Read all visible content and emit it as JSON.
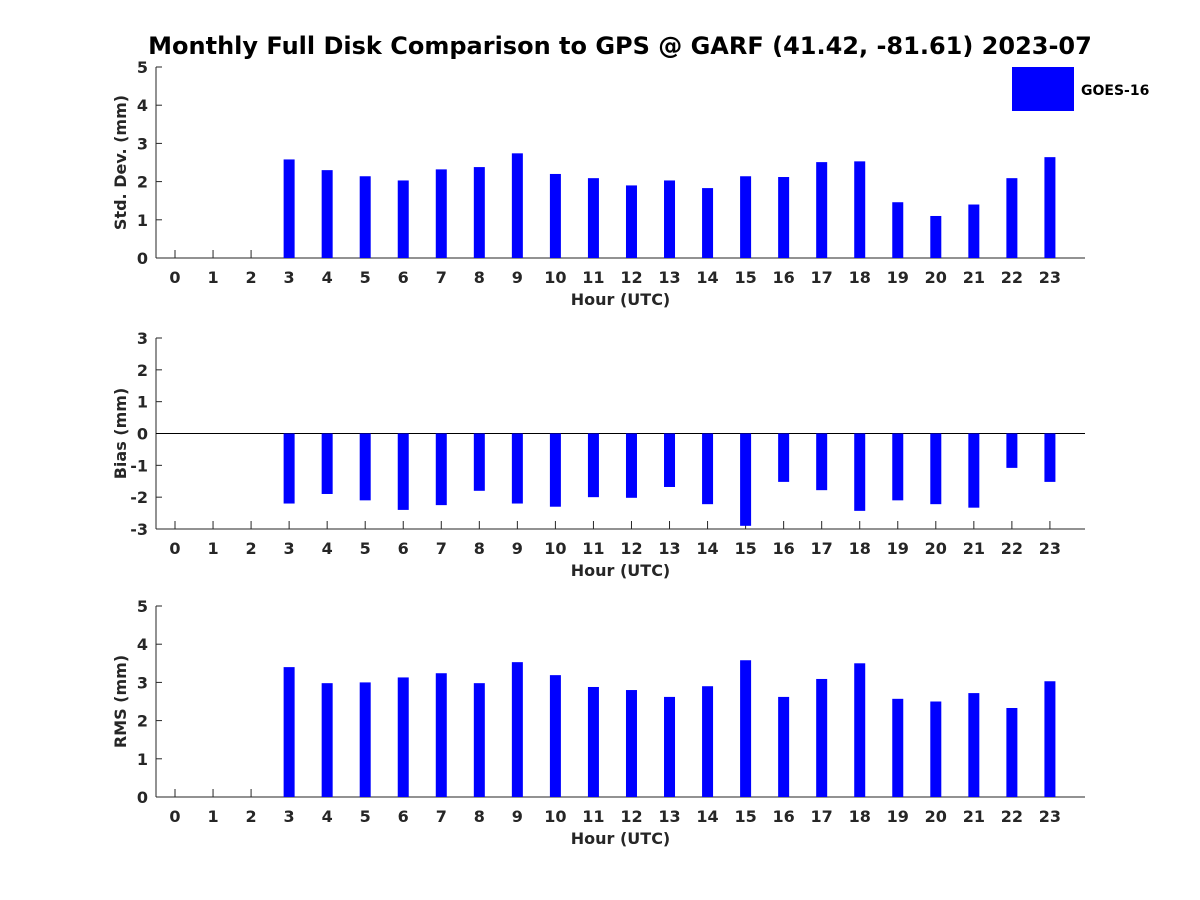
{
  "title": "Monthly Full Disk Comparison to GPS @ GARF (41.42, -81.61) 2023-07",
  "legend": {
    "label": "GOES-16",
    "placement": "top-right"
  },
  "colors": {
    "bar": "#0000ff",
    "axis": "#262626",
    "text": "#262626"
  },
  "chart_data": [
    {
      "type": "bar",
      "ylabel": "Std. Dev. (mm)",
      "xlabel": "Hour (UTC)",
      "ylim": [
        0,
        5
      ],
      "yticks": [
        0,
        1,
        2,
        3,
        4,
        5
      ],
      "categories": [
        0,
        1,
        2,
        3,
        4,
        5,
        6,
        7,
        8,
        9,
        10,
        11,
        12,
        13,
        14,
        15,
        16,
        17,
        18,
        19,
        20,
        21,
        22,
        23
      ],
      "series": [
        {
          "name": "GOES-16",
          "values": [
            null,
            null,
            null,
            2.58,
            2.3,
            2.14,
            2.03,
            2.32,
            2.38,
            2.74,
            2.2,
            2.09,
            1.9,
            2.03,
            1.83,
            2.14,
            2.12,
            2.51,
            2.53,
            1.46,
            1.1,
            1.4,
            2.09,
            2.64
          ]
        }
      ]
    },
    {
      "type": "bar",
      "ylabel": "Bias (mm)",
      "xlabel": "Hour (UTC)",
      "ylim": [
        -3,
        3
      ],
      "yticks": [
        -3,
        -2,
        -1,
        0,
        1,
        2,
        3
      ],
      "categories": [
        0,
        1,
        2,
        3,
        4,
        5,
        6,
        7,
        8,
        9,
        10,
        11,
        12,
        13,
        14,
        15,
        16,
        17,
        18,
        19,
        20,
        21,
        22,
        23
      ],
      "series": [
        {
          "name": "GOES-16",
          "values": [
            null,
            null,
            null,
            -2.2,
            -1.9,
            -2.1,
            -2.4,
            -2.25,
            -1.8,
            -2.2,
            -2.3,
            -2.0,
            -2.02,
            -1.68,
            -2.22,
            -2.9,
            -1.52,
            -1.78,
            -2.43,
            -2.1,
            -2.22,
            -2.33,
            -1.08,
            -1.52
          ]
        }
      ]
    },
    {
      "type": "bar",
      "ylabel": "RMS (mm)",
      "xlabel": "Hour (UTC)",
      "ylim": [
        0,
        5
      ],
      "yticks": [
        0,
        1,
        2,
        3,
        4,
        5
      ],
      "categories": [
        0,
        1,
        2,
        3,
        4,
        5,
        6,
        7,
        8,
        9,
        10,
        11,
        12,
        13,
        14,
        15,
        16,
        17,
        18,
        19,
        20,
        21,
        22,
        23
      ],
      "series": [
        {
          "name": "GOES-16",
          "values": [
            null,
            null,
            null,
            3.4,
            2.98,
            3.0,
            3.13,
            3.24,
            2.98,
            3.53,
            3.19,
            2.88,
            2.8,
            2.62,
            2.9,
            3.58,
            2.62,
            3.09,
            3.5,
            2.57,
            2.5,
            2.72,
            2.33,
            3.03
          ]
        }
      ]
    }
  ]
}
